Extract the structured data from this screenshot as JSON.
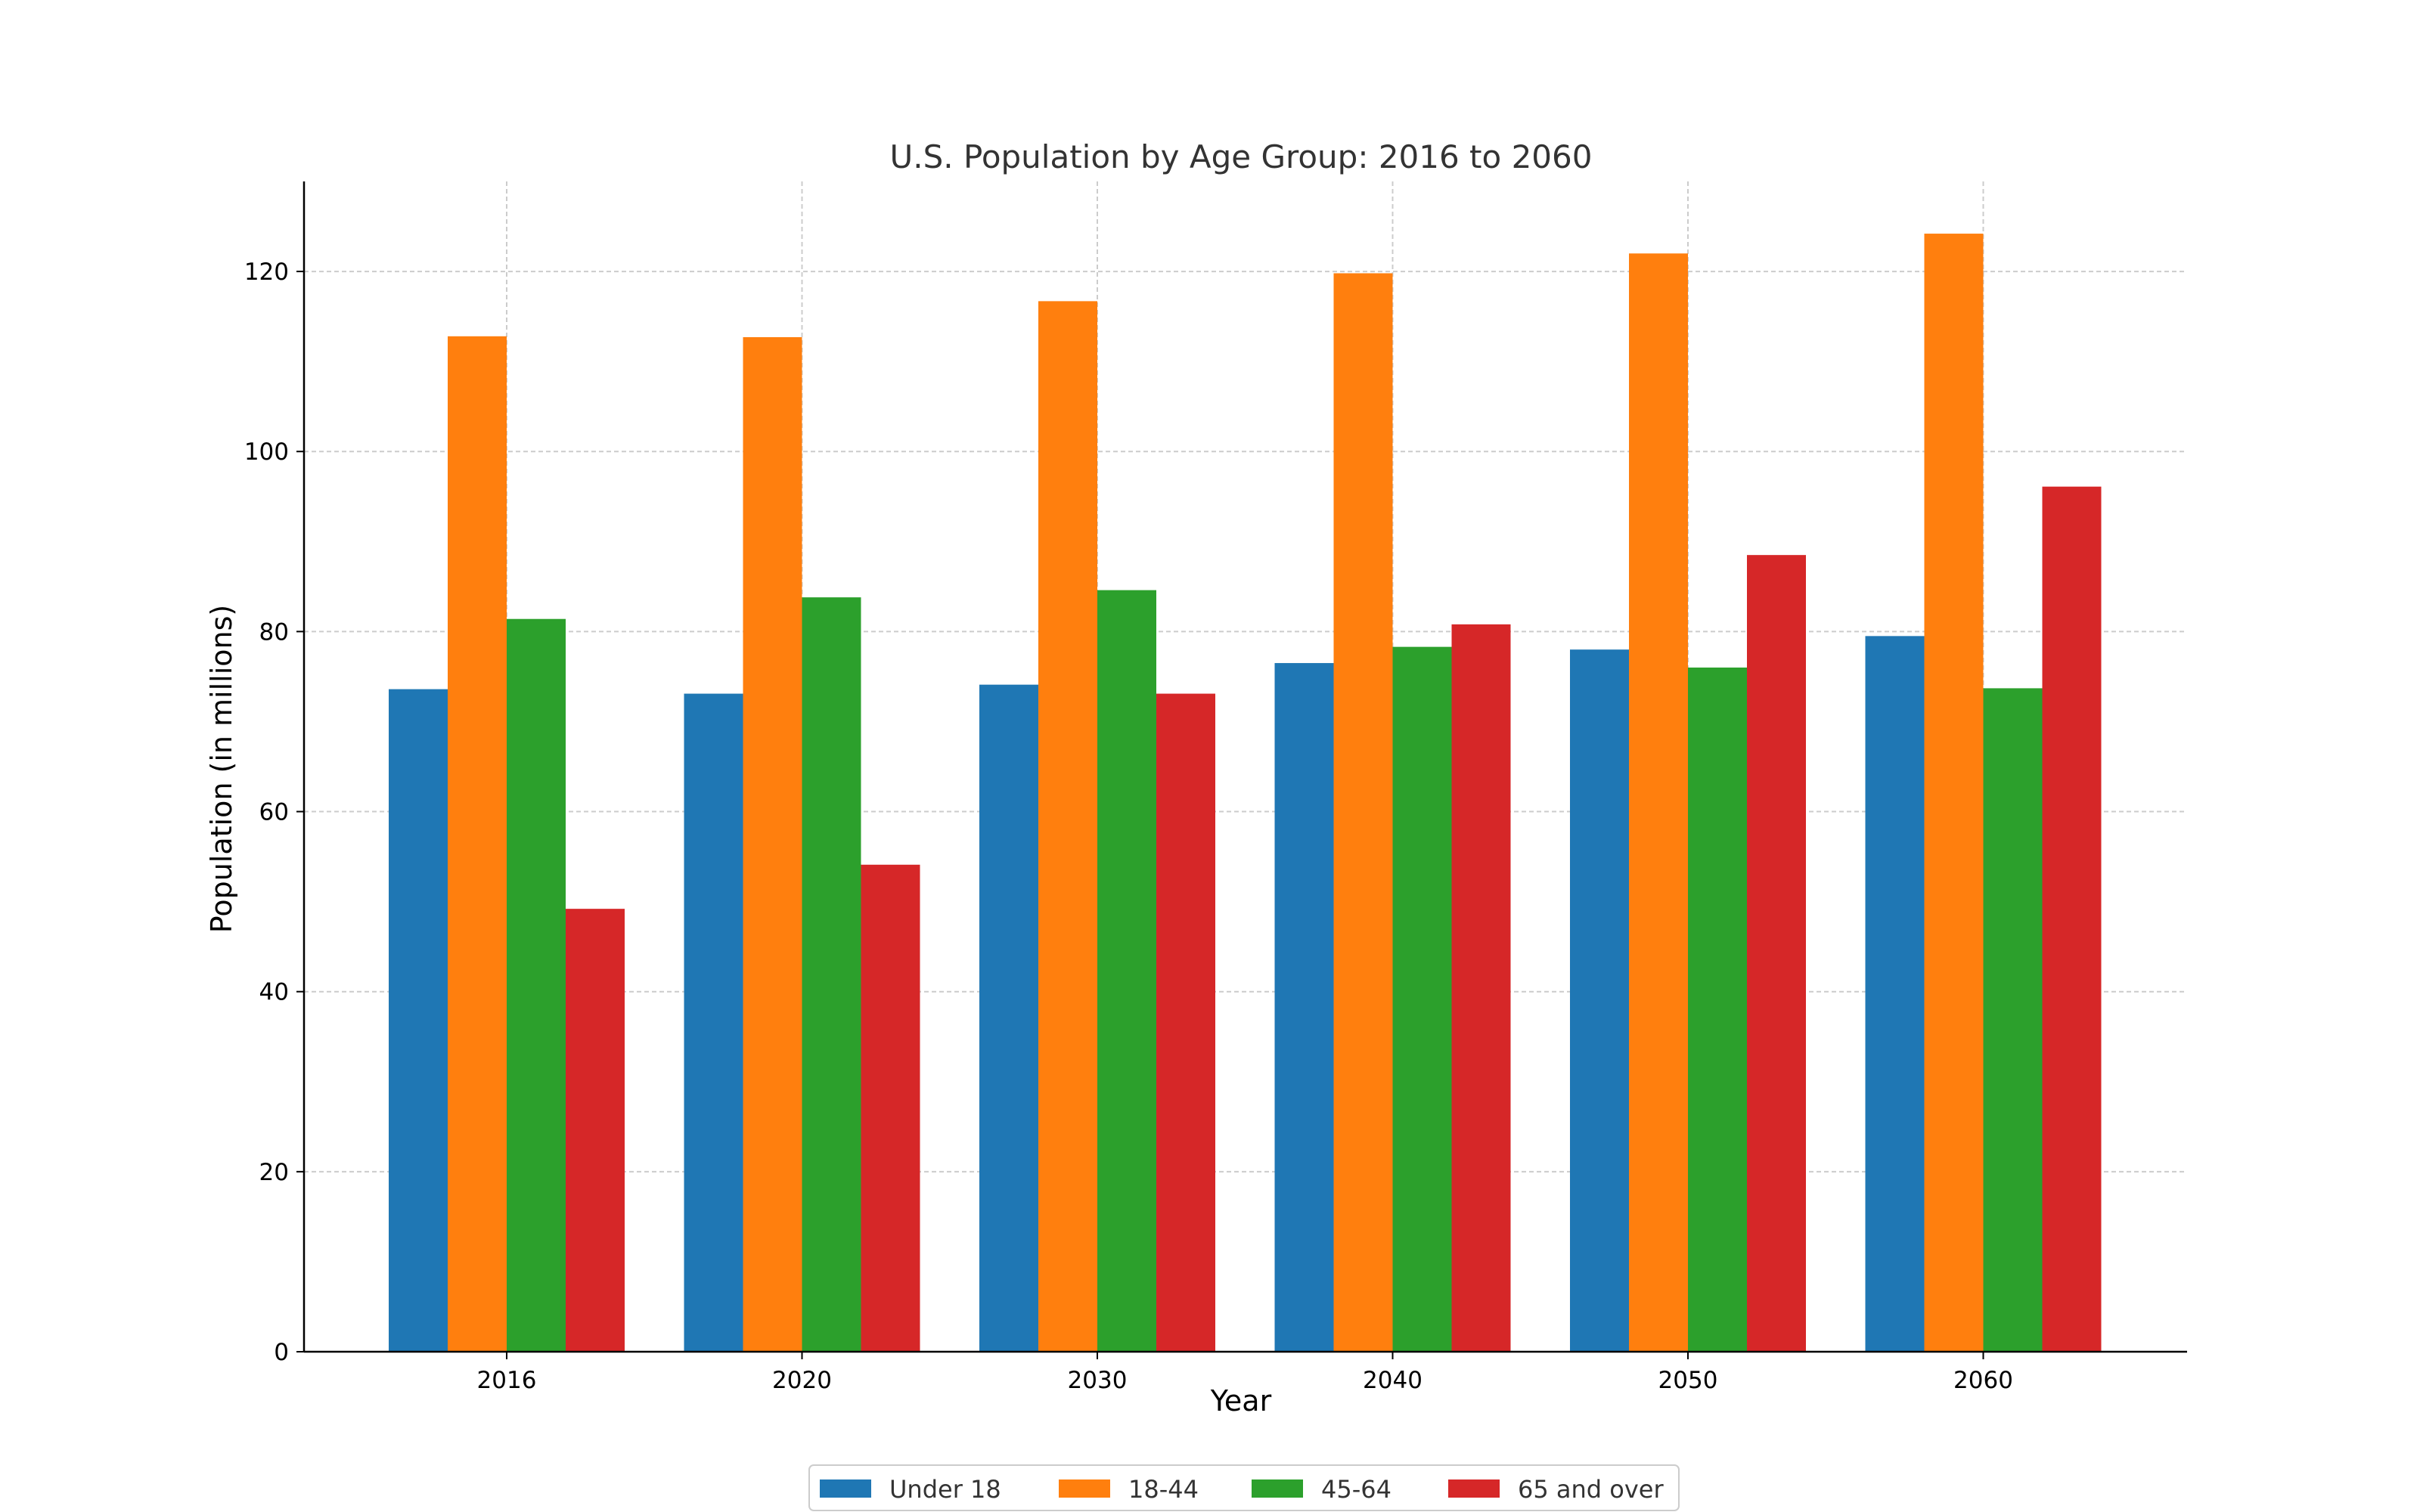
{
  "chart_data": {
    "type": "bar",
    "title": "U.S. Population by Age Group: 2016 to 2060",
    "xlabel": "Year",
    "ylabel": "Population (in millions)",
    "categories": [
      "2016",
      "2020",
      "2030",
      "2040",
      "2050",
      "2060"
    ],
    "ylim": [
      0,
      130
    ],
    "yticks": [
      0,
      20,
      40,
      60,
      80,
      100,
      120
    ],
    "grid": true,
    "legend_position": "bottom-center",
    "series": [
      {
        "name": "Under 18",
        "color": "#1f77b4",
        "values": [
          73.6,
          73.1,
          74.1,
          76.5,
          78.0,
          79.5
        ]
      },
      {
        "name": "18-44",
        "color": "#ff7f0e",
        "values": [
          112.8,
          112.7,
          116.7,
          119.8,
          122.0,
          124.2
        ]
      },
      {
        "name": "45-64",
        "color": "#2ca02c",
        "values": [
          81.4,
          83.8,
          84.6,
          78.3,
          76.0,
          73.7
        ]
      },
      {
        "name": "65 and over",
        "color": "#d62728",
        "values": [
          49.2,
          54.1,
          73.1,
          80.8,
          88.5,
          96.1
        ]
      }
    ]
  }
}
